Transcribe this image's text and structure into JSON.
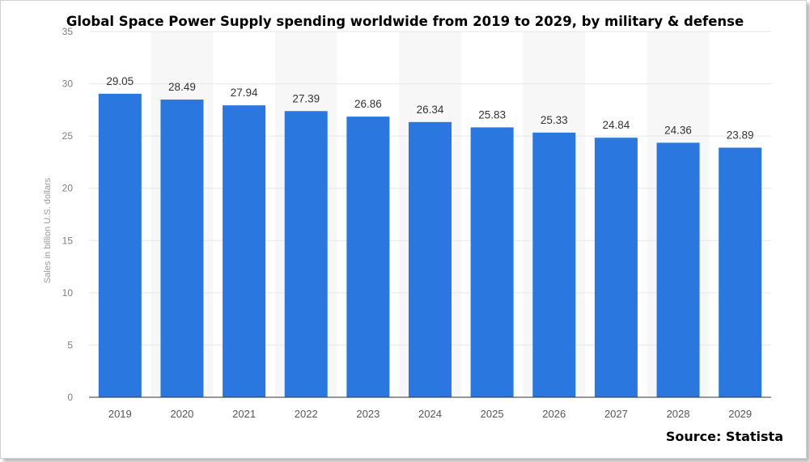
{
  "chart_data": {
    "type": "bar",
    "title": "Global Space Power Supply spending worldwide from 2019 to 2029, by military & defense",
    "xlabel": "",
    "ylabel": "Sales in billion U.S. dollars",
    "categories": [
      "2019",
      "2020",
      "2021",
      "2022",
      "2023",
      "2024",
      "2025",
      "2026",
      "2027",
      "2028",
      "2029"
    ],
    "values": [
      29.05,
      28.49,
      27.94,
      27.39,
      26.86,
      26.34,
      25.83,
      25.33,
      24.84,
      24.36,
      23.89
    ],
    "value_labels": [
      "29.05",
      "28.49",
      "27.94",
      "27.39",
      "26.86",
      "26.34",
      "25.83",
      "25.33",
      "24.84",
      "24.36",
      "23.89"
    ],
    "ylim": [
      0,
      35
    ],
    "yticks": [
      0,
      5,
      10,
      15,
      20,
      25,
      30,
      35
    ],
    "grid": true,
    "bar_color": "#2a77df",
    "grid_color": "#e6e6e6",
    "source": "Source: Statista"
  }
}
